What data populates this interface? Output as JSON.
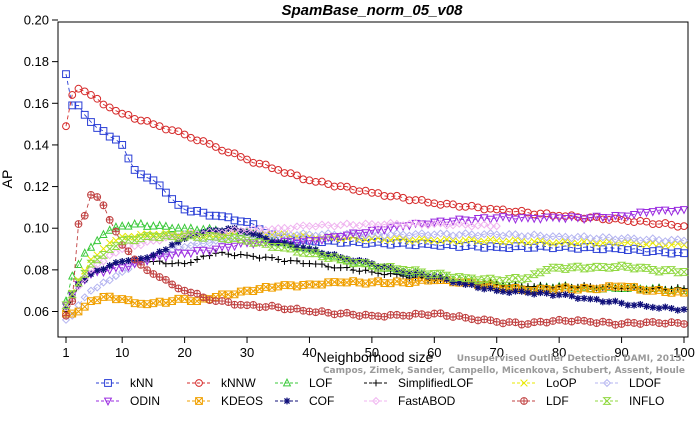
{
  "chart_data": {
    "type": "line",
    "title": "SpamBase_norm_05_v08",
    "xlabel": "Neighborhood size",
    "ylabel": "AP",
    "xlim": [
      1,
      100
    ],
    "ylim": [
      0.055,
      0.2
    ],
    "xticks": [
      1,
      10,
      20,
      30,
      40,
      50,
      60,
      70,
      80,
      90,
      100
    ],
    "yticks": [
      0.06,
      0.08,
      0.1,
      0.12,
      0.14,
      0.16,
      0.18,
      0.2
    ],
    "ytick_labels": [
      "0.06",
      "0.08",
      "0.10",
      "0.12",
      "0.14",
      "0.16",
      "0.18",
      "0.20"
    ],
    "grid": false,
    "legend_position": "bottom",
    "watermark": [
      "Campos, Zimek, Sander, Campello, Micenkova, Schubert, Assent, Houle",
      "Unsupervised Outlier Detection. DAMI, 2015."
    ],
    "series": [
      {
        "name": "kNN",
        "color": "#2b3fd6",
        "marker": "square",
        "dash": "4,3",
        "points": [
          [
            1,
            0.174
          ],
          [
            2,
            0.159
          ],
          [
            3,
            0.159
          ],
          [
            5,
            0.151
          ],
          [
            8,
            0.144
          ],
          [
            10,
            0.14
          ],
          [
            12,
            0.128
          ],
          [
            15,
            0.123
          ],
          [
            18,
            0.114
          ],
          [
            20,
            0.109
          ],
          [
            25,
            0.106
          ],
          [
            30,
            0.103
          ],
          [
            35,
            0.095
          ],
          [
            40,
            0.094
          ],
          [
            50,
            0.093
          ],
          [
            60,
            0.092
          ],
          [
            70,
            0.091
          ],
          [
            80,
            0.091
          ],
          [
            90,
            0.09
          ],
          [
            100,
            0.088
          ]
        ]
      },
      {
        "name": "kNNW",
        "color": "#d62b2b",
        "marker": "circle",
        "dash": "4,3",
        "points": [
          [
            1,
            0.149
          ],
          [
            2,
            0.164
          ],
          [
            3,
            0.167
          ],
          [
            5,
            0.164
          ],
          [
            8,
            0.158
          ],
          [
            10,
            0.155
          ],
          [
            15,
            0.15
          ],
          [
            20,
            0.145
          ],
          [
            25,
            0.139
          ],
          [
            30,
            0.133
          ],
          [
            35,
            0.128
          ],
          [
            40,
            0.123
          ],
          [
            50,
            0.117
          ],
          [
            60,
            0.112
          ],
          [
            70,
            0.109
          ],
          [
            80,
            0.106
          ],
          [
            90,
            0.104
          ],
          [
            100,
            0.101
          ]
        ]
      },
      {
        "name": "LOF",
        "color": "#3ac93a",
        "marker": "triangle-up",
        "dash": "4,3",
        "points": [
          [
            1,
            0.065
          ],
          [
            2,
            0.077
          ],
          [
            4,
            0.088
          ],
          [
            6,
            0.094
          ],
          [
            8,
            0.099
          ],
          [
            10,
            0.101
          ],
          [
            12,
            0.102
          ],
          [
            15,
            0.101
          ],
          [
            20,
            0.1
          ],
          [
            25,
            0.099
          ],
          [
            30,
            0.098
          ],
          [
            35,
            0.093
          ],
          [
            40,
            0.09
          ],
          [
            45,
            0.085
          ],
          [
            50,
            0.082
          ],
          [
            55,
            0.079
          ],
          [
            60,
            0.077
          ],
          [
            65,
            0.075
          ],
          [
            70,
            0.073
          ],
          [
            75,
            0.071
          ],
          [
            80,
            0.072
          ],
          [
            85,
            0.071
          ],
          [
            90,
            0.071
          ],
          [
            95,
            0.071
          ],
          [
            100,
            0.07
          ]
        ]
      },
      {
        "name": "SimplifiedLOF",
        "color": "#000000",
        "marker": "plus",
        "dash": "4,3",
        "points": [
          [
            1,
            0.06
          ],
          [
            2,
            0.066
          ],
          [
            3,
            0.072
          ],
          [
            5,
            0.078
          ],
          [
            8,
            0.082
          ],
          [
            10,
            0.084
          ],
          [
            12,
            0.085
          ],
          [
            15,
            0.084
          ],
          [
            18,
            0.083
          ],
          [
            20,
            0.083
          ],
          [
            22,
            0.085
          ],
          [
            25,
            0.088
          ],
          [
            30,
            0.087
          ],
          [
            35,
            0.085
          ],
          [
            40,
            0.083
          ],
          [
            45,
            0.081
          ],
          [
            50,
            0.079
          ],
          [
            55,
            0.077
          ],
          [
            60,
            0.075
          ],
          [
            65,
            0.074
          ],
          [
            70,
            0.073
          ],
          [
            75,
            0.072
          ],
          [
            80,
            0.072
          ],
          [
            85,
            0.072
          ],
          [
            90,
            0.071
          ],
          [
            95,
            0.071
          ],
          [
            100,
            0.071
          ]
        ]
      },
      {
        "name": "LoOP",
        "color": "#e8e800",
        "marker": "x",
        "dash": "4,3",
        "points": [
          [
            1,
            0.063
          ],
          [
            3,
            0.075
          ],
          [
            5,
            0.085
          ],
          [
            8,
            0.093
          ],
          [
            10,
            0.096
          ],
          [
            15,
            0.097
          ],
          [
            20,
            0.097
          ],
          [
            25,
            0.097
          ],
          [
            30,
            0.098
          ],
          [
            35,
            0.097
          ],
          [
            40,
            0.096
          ],
          [
            50,
            0.095
          ],
          [
            60,
            0.094
          ],
          [
            70,
            0.094
          ],
          [
            80,
            0.093
          ],
          [
            90,
            0.093
          ],
          [
            100,
            0.092
          ]
        ]
      },
      {
        "name": "LDOF",
        "color": "#b4b4f0",
        "marker": "diamond",
        "dash": "4,3",
        "points": [
          [
            1,
            0.056
          ],
          [
            2,
            0.058
          ],
          [
            3,
            0.063
          ],
          [
            5,
            0.07
          ],
          [
            8,
            0.075
          ],
          [
            10,
            0.079
          ],
          [
            12,
            0.083
          ],
          [
            15,
            0.087
          ],
          [
            20,
            0.091
          ],
          [
            25,
            0.094
          ],
          [
            30,
            0.096
          ],
          [
            35,
            0.097
          ],
          [
            40,
            0.097
          ],
          [
            50,
            0.097
          ],
          [
            60,
            0.097
          ],
          [
            70,
            0.097
          ],
          [
            80,
            0.096
          ],
          [
            90,
            0.095
          ],
          [
            100,
            0.094
          ]
        ]
      },
      {
        "name": "ODIN",
        "color": "#9a2be0",
        "marker": "triangle-down",
        "dash": "4,3",
        "points": [
          [
            1,
            0.063
          ],
          [
            3,
            0.073
          ],
          [
            5,
            0.078
          ],
          [
            8,
            0.08
          ],
          [
            10,
            0.081
          ],
          [
            12,
            0.083
          ],
          [
            15,
            0.086
          ],
          [
            20,
            0.088
          ],
          [
            25,
            0.09
          ],
          [
            30,
            0.093
          ],
          [
            35,
            0.093
          ],
          [
            40,
            0.094
          ],
          [
            45,
            0.096
          ],
          [
            50,
            0.099
          ],
          [
            55,
            0.101
          ],
          [
            60,
            0.103
          ],
          [
            65,
            0.104
          ],
          [
            70,
            0.105
          ],
          [
            75,
            0.105
          ],
          [
            80,
            0.105
          ],
          [
            85,
            0.105
          ],
          [
            90,
            0.106
          ],
          [
            95,
            0.108
          ],
          [
            100,
            0.109
          ]
        ]
      },
      {
        "name": "KDEOS",
        "color": "#f0a000",
        "marker": "square-x",
        "dash": "4,3",
        "points": [
          [
            1,
            0.059
          ],
          [
            2,
            0.059
          ],
          [
            3,
            0.06
          ],
          [
            5,
            0.065
          ],
          [
            7,
            0.067
          ],
          [
            10,
            0.066
          ],
          [
            12,
            0.064
          ],
          [
            15,
            0.064
          ],
          [
            18,
            0.065
          ],
          [
            20,
            0.066
          ],
          [
            22,
            0.065
          ],
          [
            25,
            0.067
          ],
          [
            30,
            0.07
          ],
          [
            35,
            0.072
          ],
          [
            40,
            0.073
          ],
          [
            45,
            0.074
          ],
          [
            50,
            0.074
          ],
          [
            55,
            0.074
          ],
          [
            60,
            0.075
          ],
          [
            65,
            0.074
          ],
          [
            70,
            0.072
          ],
          [
            75,
            0.07
          ],
          [
            80,
            0.071
          ],
          [
            85,
            0.071
          ],
          [
            90,
            0.072
          ],
          [
            95,
            0.07
          ],
          [
            100,
            0.069
          ]
        ]
      },
      {
        "name": "COF",
        "color": "#10107a",
        "marker": "asterisk",
        "dash": "4,3",
        "points": [
          [
            1,
            0.062
          ],
          [
            2,
            0.068
          ],
          [
            3,
            0.073
          ],
          [
            5,
            0.078
          ],
          [
            8,
            0.082
          ],
          [
            10,
            0.084
          ],
          [
            12,
            0.085
          ],
          [
            15,
            0.087
          ],
          [
            18,
            0.092
          ],
          [
            20,
            0.095
          ],
          [
            23,
            0.098
          ],
          [
            25,
            0.099
          ],
          [
            28,
            0.1
          ],
          [
            30,
            0.098
          ],
          [
            33,
            0.095
          ],
          [
            35,
            0.093
          ],
          [
            40,
            0.09
          ],
          [
            45,
            0.086
          ],
          [
            50,
            0.083
          ],
          [
            55,
            0.079
          ],
          [
            60,
            0.077
          ],
          [
            65,
            0.073
          ],
          [
            70,
            0.07
          ],
          [
            75,
            0.069
          ],
          [
            80,
            0.068
          ],
          [
            85,
            0.066
          ],
          [
            90,
            0.064
          ],
          [
            95,
            0.062
          ],
          [
            100,
            0.061
          ]
        ]
      },
      {
        "name": "FastABOD",
        "color": "#f0b4f0",
        "marker": "diamond",
        "dash": "4,3",
        "points": [
          [
            1,
            0.062
          ],
          [
            3,
            0.072
          ],
          [
            5,
            0.08
          ],
          [
            8,
            0.087
          ],
          [
            10,
            0.09
          ],
          [
            15,
            0.094
          ],
          [
            20,
            0.097
          ],
          [
            25,
            0.098
          ],
          [
            30,
            0.099
          ],
          [
            35,
            0.1
          ],
          [
            40,
            0.101
          ],
          [
            50,
            0.102
          ],
          [
            60,
            0.102
          ],
          [
            70,
            0.101
          ]
        ]
      },
      {
        "name": "LDF",
        "color": "#c04040",
        "marker": "circle-plus",
        "dash": "4,3",
        "points": [
          [
            1,
            0.058
          ],
          [
            2,
            0.065
          ],
          [
            3,
            0.102
          ],
          [
            4,
            0.106
          ],
          [
            5,
            0.116
          ],
          [
            6,
            0.115
          ],
          [
            7,
            0.111
          ],
          [
            8,
            0.104
          ],
          [
            10,
            0.092
          ],
          [
            12,
            0.085
          ],
          [
            15,
            0.078
          ],
          [
            18,
            0.073
          ],
          [
            20,
            0.07
          ],
          [
            25,
            0.065
          ],
          [
            30,
            0.063
          ],
          [
            35,
            0.062
          ],
          [
            40,
            0.06
          ],
          [
            45,
            0.059
          ],
          [
            50,
            0.058
          ],
          [
            55,
            0.058
          ],
          [
            60,
            0.059
          ],
          [
            65,
            0.057
          ],
          [
            70,
            0.055
          ],
          [
            75,
            0.054
          ],
          [
            80,
            0.056
          ],
          [
            85,
            0.055
          ],
          [
            90,
            0.054
          ],
          [
            95,
            0.055
          ],
          [
            100,
            0.054
          ]
        ]
      },
      {
        "name": "INFLO",
        "color": "#90d840",
        "marker": "hourglass",
        "dash": "4,3",
        "points": [
          [
            1,
            0.063
          ],
          [
            3,
            0.074
          ],
          [
            5,
            0.083
          ],
          [
            8,
            0.09
          ],
          [
            10,
            0.094
          ],
          [
            15,
            0.096
          ],
          [
            20,
            0.096
          ],
          [
            25,
            0.096
          ],
          [
            30,
            0.094
          ],
          [
            35,
            0.091
          ],
          [
            40,
            0.088
          ],
          [
            45,
            0.085
          ],
          [
            50,
            0.082
          ],
          [
            55,
            0.08
          ],
          [
            60,
            0.078
          ],
          [
            65,
            0.076
          ],
          [
            70,
            0.075
          ],
          [
            75,
            0.076
          ],
          [
            78,
            0.08
          ],
          [
            80,
            0.081
          ],
          [
            85,
            0.081
          ],
          [
            88,
            0.081
          ],
          [
            90,
            0.082
          ],
          [
            95,
            0.08
          ],
          [
            100,
            0.079
          ]
        ]
      }
    ]
  }
}
